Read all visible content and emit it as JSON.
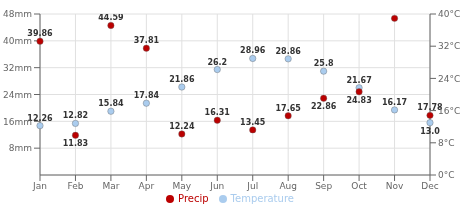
{
  "chart_data": {
    "type": "scatter",
    "categories": [
      "Jan",
      "Feb",
      "Mar",
      "Apr",
      "May",
      "Jun",
      "Jul",
      "Aug",
      "Sep",
      "Oct",
      "Nov",
      "Dec"
    ],
    "series": [
      {
        "name": "Temperature",
        "color": "#aaccee",
        "axis": "y2",
        "marker": "circle",
        "values": [
          12.26,
          12.82,
          15.84,
          17.84,
          21.86,
          26.2,
          28.96,
          28.86,
          25.8,
          21.67,
          16.17,
          13.0
        ],
        "value_labels": [
          "12.26",
          "12.82",
          "15.84",
          "17.84",
          "21.86",
          "26.2",
          "28.96",
          "28.86",
          "25.8",
          "21.67",
          "16.17",
          "13.0"
        ]
      },
      {
        "name": "Precip",
        "color": "#bb0000",
        "marker": "circle",
        "values": [
          39.86,
          11.83,
          44.59,
          37.81,
          12.24,
          16.31,
          13.45,
          17.65,
          22.86,
          24.83,
          46.71,
          17.78
        ]
      }
    ],
    "ylim": [
      0,
      48
    ],
    "yticks": [
      {
        "value": 8,
        "label": "8mm"
      },
      {
        "value": 16,
        "label": "16mm"
      },
      {
        "value": 24,
        "label": "24mm"
      },
      {
        "value": 32,
        "label": "32mm"
      },
      {
        "value": 40,
        "label": "40mm"
      },
      {
        "value": 48,
        "label": "48mm"
      }
    ],
    "y2lim": [
      0,
      40
    ],
    "y2ticks": [
      {
        "value": 0,
        "label": "0°C"
      },
      {
        "value": 8,
        "label": "8°C"
      },
      {
        "value": 16,
        "label": "16°C"
      },
      {
        "value": 24,
        "label": "24°C"
      },
      {
        "value": 32,
        "label": "32°C"
      },
      {
        "value": 40,
        "label": "40°C"
      }
    ],
    "grid": true,
    "legend": "bottom",
    "data_labels": true
  }
}
